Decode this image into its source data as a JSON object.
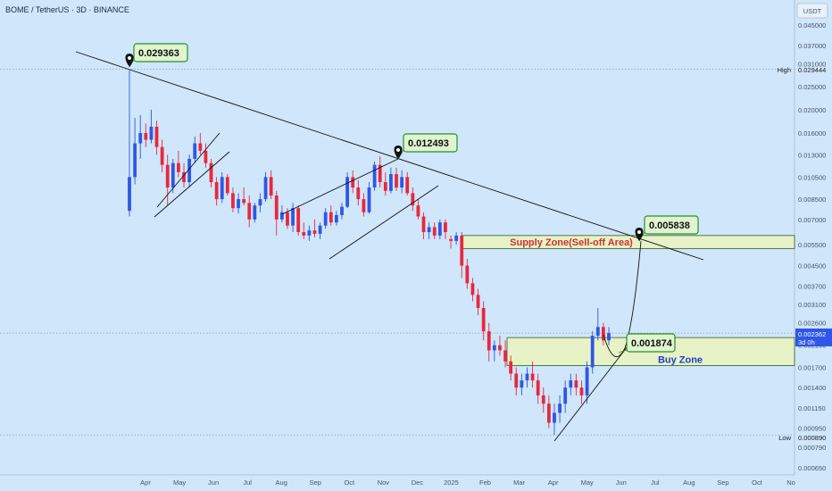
{
  "chart_data": {
    "type": "candlestick",
    "title": "BOME / TetherUS · 3D · BINANCE",
    "currency_label": "USDT",
    "y_scale": "log",
    "y_ticks": [
      "0.045000",
      "0.037000",
      "0.031000",
      "0.025000",
      "0.020000",
      "0.016000",
      "0.013000",
      "0.010500",
      "0.008500",
      "0.007000",
      "0.005500",
      "0.004500",
      "0.003700",
      "0.003100",
      "0.002600",
      "0.002100",
      "0.001700",
      "0.001400",
      "0.001150",
      "0.000950",
      "0.000790",
      "0.000650"
    ],
    "x_ticks": [
      "Apr",
      "May",
      "Jun",
      "Jul",
      "Aug",
      "Sep",
      "Oct",
      "Nov",
      "Dec",
      "2025",
      "Feb",
      "Mar",
      "Apr",
      "May",
      "Jun",
      "Jul",
      "Aug",
      "Sep",
      "Oct",
      "No"
    ],
    "high_label": "High",
    "high_value": "0.029444",
    "low_label": "Low",
    "low_value": "0.000890",
    "last_price": "0.002362",
    "last_price_sub": "3d 0h",
    "callouts": [
      "0.029363",
      "0.012493",
      "0.005838",
      "0.001874"
    ],
    "zones": [
      {
        "name": "Supply Zone(Sell-off Area)",
        "low": 0.0053,
        "high": 0.006
      },
      {
        "name": "Buy Zone",
        "low": 0.00173,
        "high": 0.00226
      }
    ],
    "colors": {
      "up": "#2f56e6",
      "down": "#e8283c",
      "background": "#cfe6fb",
      "zone_fill": "#e8f2c4",
      "zone_border": "#2e5e1e",
      "callout_fill": "#dff5cf",
      "callout_border": "#2f8a2f",
      "badge": "#2f56e6"
    },
    "candles": [
      [
        0.0076,
        0.0292,
        0.0072,
        0.0105
      ],
      [
        0.0105,
        0.0185,
        0.0098,
        0.0145
      ],
      [
        0.0145,
        0.019,
        0.0125,
        0.016
      ],
      [
        0.016,
        0.0175,
        0.014,
        0.015
      ],
      [
        0.015,
        0.02,
        0.0145,
        0.017
      ],
      [
        0.017,
        0.018,
        0.013,
        0.014
      ],
      [
        0.014,
        0.015,
        0.011,
        0.0118
      ],
      [
        0.0118,
        0.013,
        0.008,
        0.0095
      ],
      [
        0.0095,
        0.0125,
        0.009,
        0.012
      ],
      [
        0.012,
        0.0135,
        0.0105,
        0.011
      ],
      [
        0.011,
        0.012,
        0.0095,
        0.01
      ],
      [
        0.01,
        0.013,
        0.0095,
        0.0125
      ],
      [
        0.0125,
        0.0155,
        0.012,
        0.0145
      ],
      [
        0.0145,
        0.016,
        0.013,
        0.0135
      ],
      [
        0.0135,
        0.0145,
        0.0115,
        0.012
      ],
      [
        0.012,
        0.0125,
        0.0095,
        0.01
      ],
      [
        0.01,
        0.0105,
        0.008,
        0.0085
      ],
      [
        0.0085,
        0.011,
        0.0082,
        0.0105
      ],
      [
        0.0105,
        0.0108,
        0.0088,
        0.009
      ],
      [
        0.009,
        0.0095,
        0.0075,
        0.0078
      ],
      [
        0.0078,
        0.009,
        0.0074,
        0.0085
      ],
      [
        0.0085,
        0.0095,
        0.008,
        0.0082
      ],
      [
        0.0082,
        0.0088,
        0.0065,
        0.007
      ],
      [
        0.007,
        0.0082,
        0.0068,
        0.008
      ],
      [
        0.008,
        0.009,
        0.0075,
        0.0085
      ],
      [
        0.0085,
        0.011,
        0.0083,
        0.0105
      ],
      [
        0.0105,
        0.0112,
        0.0085,
        0.0088
      ],
      [
        0.0088,
        0.0092,
        0.006,
        0.007
      ],
      [
        0.007,
        0.008,
        0.0068,
        0.0075
      ],
      [
        0.0075,
        0.0078,
        0.0064,
        0.0066
      ],
      [
        0.0066,
        0.0082,
        0.0062,
        0.0078
      ],
      [
        0.0078,
        0.008,
        0.006,
        0.0062
      ],
      [
        0.0062,
        0.0068,
        0.0058,
        0.006
      ],
      [
        0.006,
        0.0066,
        0.0057,
        0.0063
      ],
      [
        0.0063,
        0.007,
        0.0059,
        0.0061
      ],
      [
        0.0061,
        0.0068,
        0.0058,
        0.0066
      ],
      [
        0.0066,
        0.0078,
        0.0064,
        0.0075
      ],
      [
        0.0075,
        0.008,
        0.0066,
        0.0068
      ],
      [
        0.0068,
        0.0076,
        0.0066,
        0.0073
      ],
      [
        0.0073,
        0.0082,
        0.007,
        0.0079
      ],
      [
        0.0079,
        0.011,
        0.0078,
        0.0105
      ],
      [
        0.0105,
        0.0112,
        0.009,
        0.0095
      ],
      [
        0.0095,
        0.0102,
        0.008,
        0.0085
      ],
      [
        0.0085,
        0.009,
        0.0072,
        0.0075
      ],
      [
        0.0075,
        0.01,
        0.0074,
        0.0095
      ],
      [
        0.0095,
        0.0122,
        0.0092,
        0.0118
      ],
      [
        0.0118,
        0.0128,
        0.0095,
        0.01
      ],
      [
        0.01,
        0.011,
        0.0088,
        0.0092
      ],
      [
        0.0092,
        0.0115,
        0.009,
        0.0108
      ],
      [
        0.0108,
        0.0115,
        0.0092,
        0.0095
      ],
      [
        0.0095,
        0.0112,
        0.009,
        0.0105
      ],
      [
        0.0105,
        0.011,
        0.0088,
        0.009
      ],
      [
        0.009,
        0.0095,
        0.0076,
        0.008
      ],
      [
        0.008,
        0.0085,
        0.007,
        0.0072
      ],
      [
        0.0072,
        0.0075,
        0.0058,
        0.0062
      ],
      [
        0.0062,
        0.0068,
        0.0058,
        0.0065
      ],
      [
        0.0065,
        0.0068,
        0.0058,
        0.006
      ],
      [
        0.006,
        0.007,
        0.0058,
        0.0068
      ],
      [
        0.0068,
        0.007,
        0.0058,
        0.0062
      ],
      [
        0.0058,
        0.006,
        0.0053,
        0.0057
      ],
      [
        0.0057,
        0.0062,
        0.0055,
        0.006
      ],
      [
        0.006,
        0.0062,
        0.004,
        0.0045
      ],
      [
        0.0045,
        0.0048,
        0.0036,
        0.0038
      ],
      [
        0.0038,
        0.004,
        0.0032,
        0.0034
      ],
      [
        0.0034,
        0.0036,
        0.0028,
        0.003
      ],
      [
        0.003,
        0.0032,
        0.0022,
        0.0024
      ],
      [
        0.0024,
        0.0026,
        0.0018,
        0.002
      ],
      [
        0.002,
        0.0022,
        0.0018,
        0.0021
      ],
      [
        0.0021,
        0.0023,
        0.0019,
        0.002
      ],
      [
        0.002,
        0.0022,
        0.0017,
        0.0018
      ],
      [
        0.0018,
        0.0019,
        0.0015,
        0.0016
      ],
      [
        0.0016,
        0.0017,
        0.0013,
        0.0014
      ],
      [
        0.0014,
        0.0016,
        0.0013,
        0.0015
      ],
      [
        0.0015,
        0.0017,
        0.0014,
        0.0016
      ],
      [
        0.0016,
        0.0018,
        0.0014,
        0.0015
      ],
      [
        0.0015,
        0.0016,
        0.0012,
        0.0013
      ],
      [
        0.0013,
        0.0014,
        0.0011,
        0.0012
      ],
      [
        0.0012,
        0.0013,
        0.00095,
        0.001
      ],
      [
        0.001,
        0.0012,
        0.00089,
        0.0011
      ],
      [
        0.0011,
        0.0013,
        0.001,
        0.0012
      ],
      [
        0.0012,
        0.0015,
        0.0011,
        0.0014
      ],
      [
        0.0014,
        0.0016,
        0.0013,
        0.0015
      ],
      [
        0.0015,
        0.0016,
        0.0013,
        0.0014
      ],
      [
        0.0014,
        0.0015,
        0.0012,
        0.0013
      ],
      [
        0.0013,
        0.0018,
        0.0012,
        0.0017
      ],
      [
        0.0017,
        0.0024,
        0.0016,
        0.0023
      ],
      [
        0.0023,
        0.003,
        0.0022,
        0.0025
      ],
      [
        0.0025,
        0.0026,
        0.0021,
        0.0022
      ],
      [
        0.0022,
        0.0025,
        0.0021,
        0.00236
      ]
    ]
  }
}
